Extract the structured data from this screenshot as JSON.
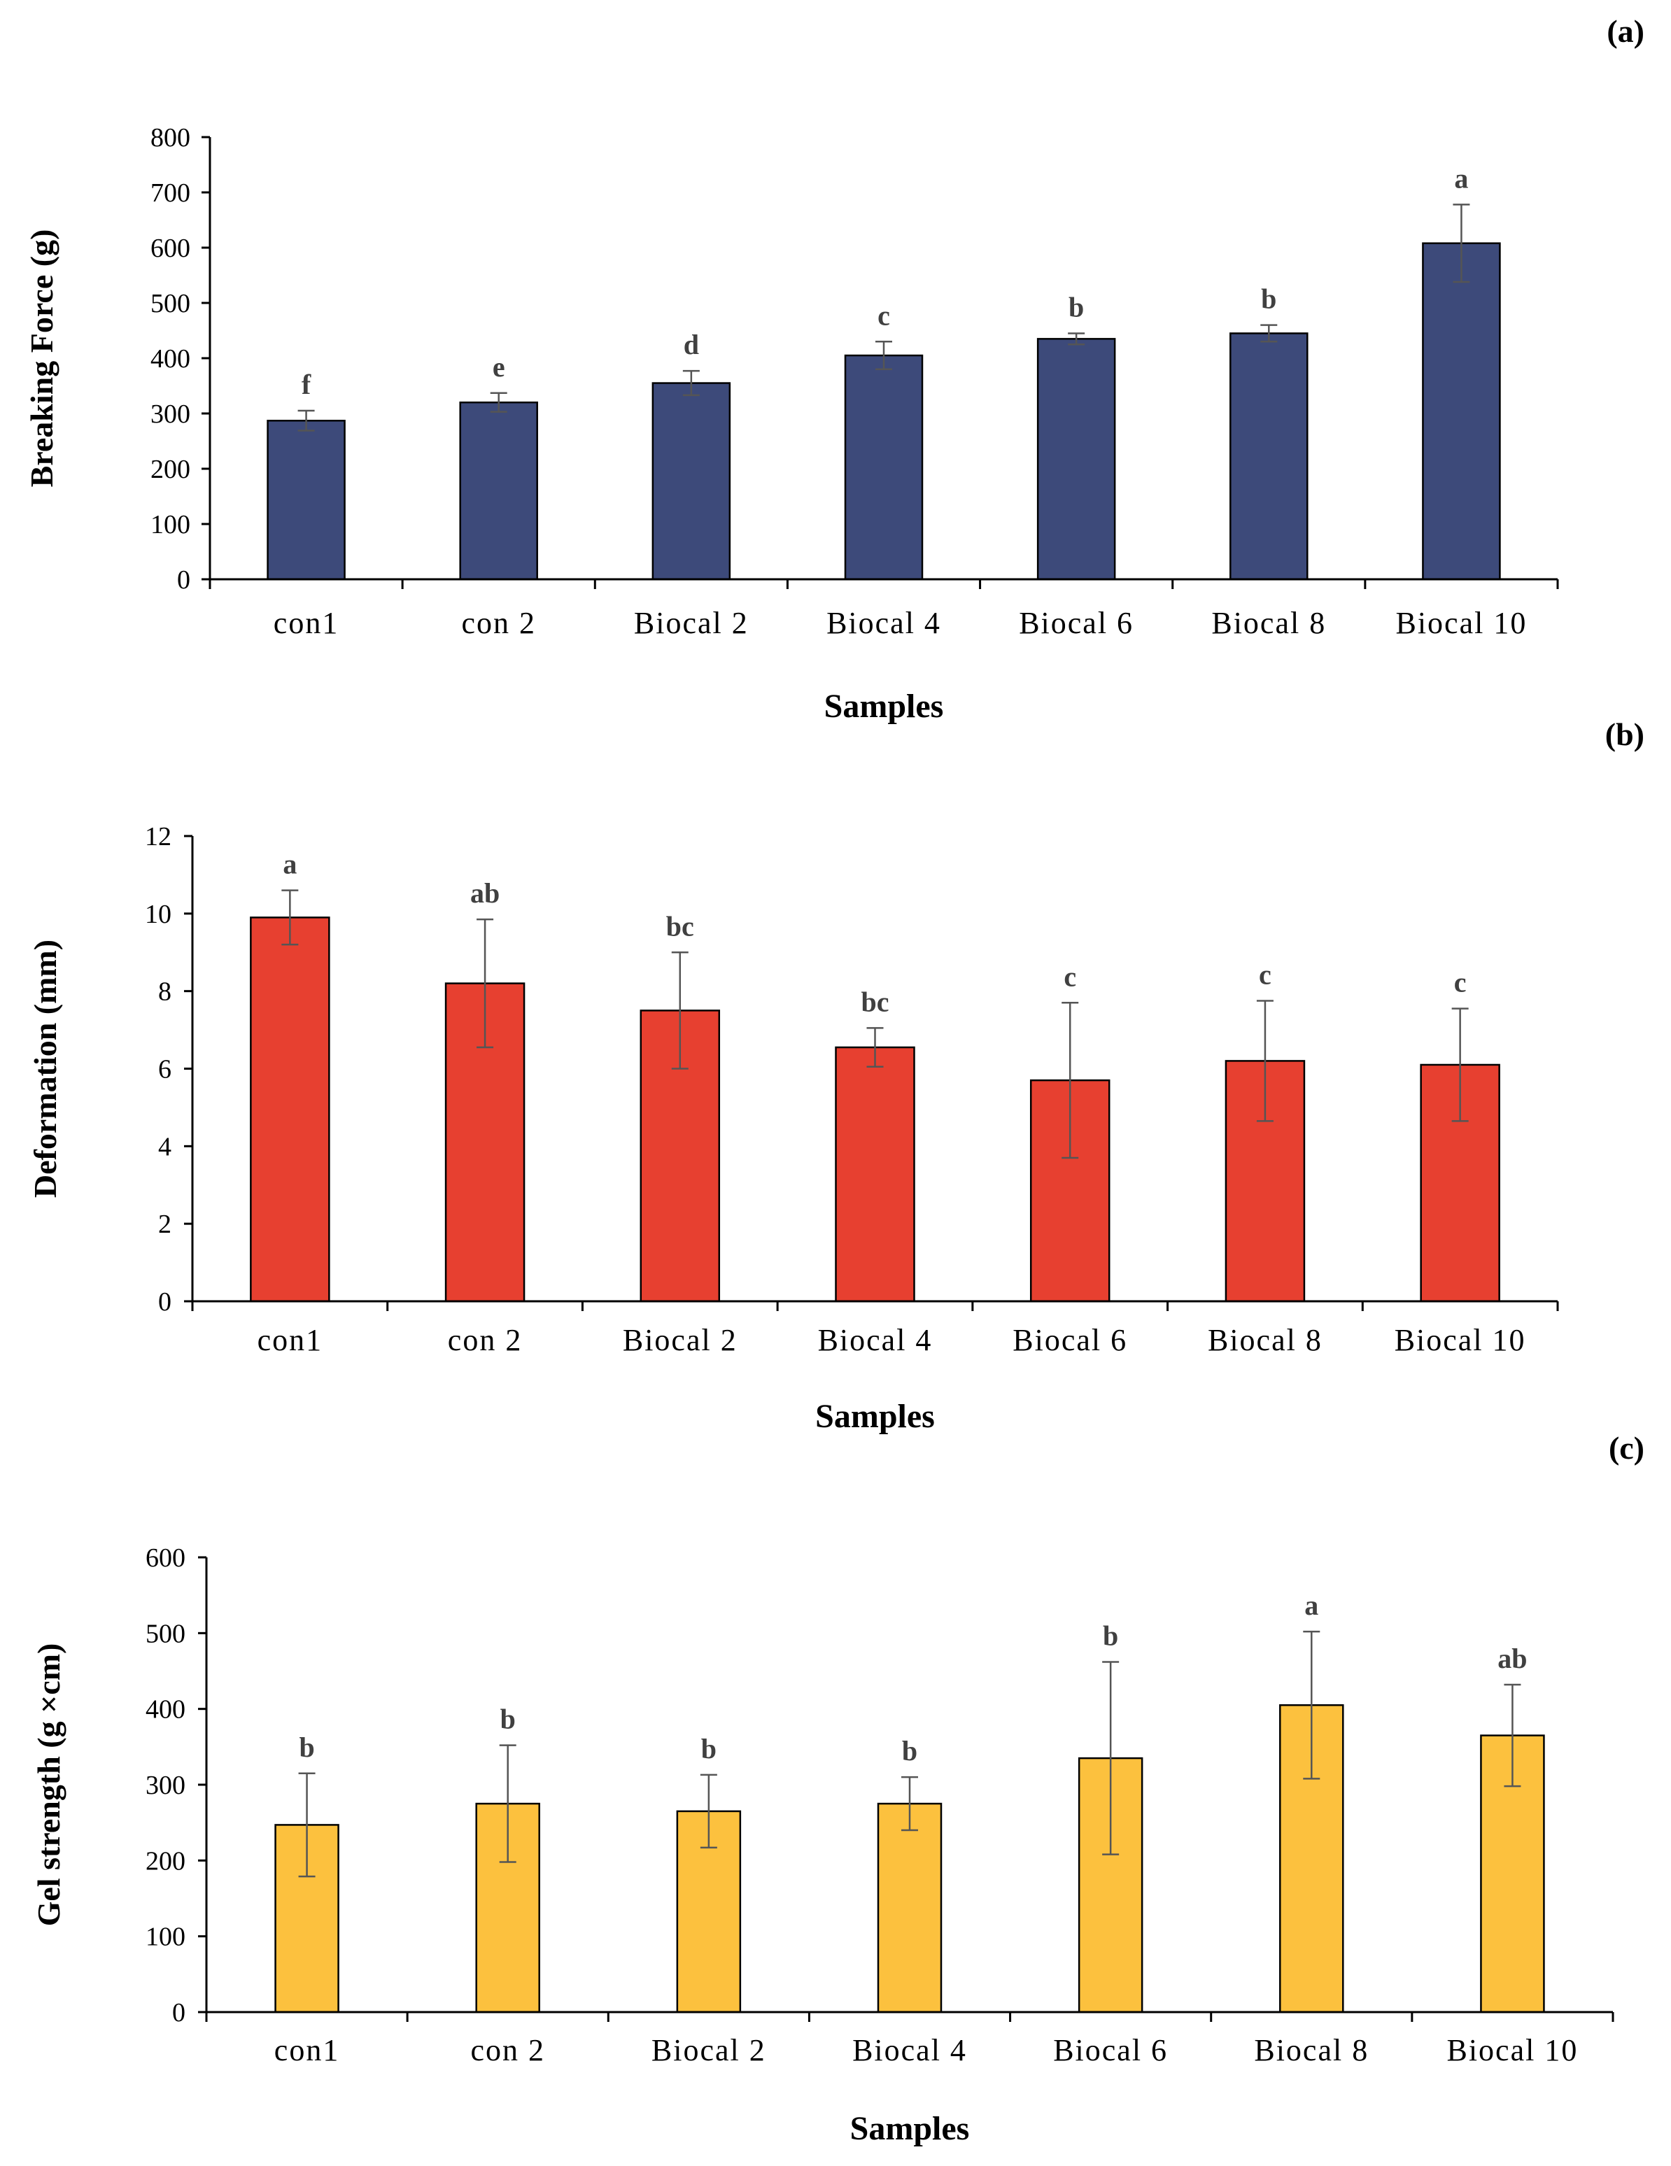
{
  "chart_data": [
    {
      "type": "bar",
      "panel_label": "(a)",
      "ylabel": "Breaking Force (g)",
      "xlabel": "Samples",
      "ylim": [
        0,
        800
      ],
      "yticks": [
        0,
        100,
        200,
        300,
        400,
        500,
        600,
        700,
        800
      ],
      "categories": [
        "con1",
        "con 2",
        "Biocal 2",
        "Biocal 4",
        "Biocal 6",
        "Biocal 8",
        "Biocal 10"
      ],
      "values": [
        287,
        320,
        355,
        405,
        435,
        445,
        608
      ],
      "errors": [
        18,
        17,
        22,
        25,
        10,
        15,
        70
      ],
      "significance": [
        "f",
        "e",
        "d",
        "c",
        "b",
        "b",
        "a"
      ],
      "bar_color": "#3d4a7a"
    },
    {
      "type": "bar",
      "panel_label": "(b)",
      "ylabel": "Deformation (mm)",
      "xlabel": "Samples",
      "ylim": [
        0,
        12
      ],
      "yticks": [
        0,
        2,
        4,
        6,
        8,
        10,
        12
      ],
      "categories": [
        "con1",
        "con 2",
        "Biocal 2",
        "Biocal 4",
        "Biocal 6",
        "Biocal 8",
        "Biocal 10"
      ],
      "values": [
        9.9,
        8.2,
        7.5,
        6.55,
        5.7,
        6.2,
        6.1
      ],
      "errors": [
        0.7,
        1.65,
        1.5,
        0.5,
        2.0,
        1.55,
        1.45
      ],
      "significance": [
        "a",
        "ab",
        "bc",
        "bc",
        "c",
        "c",
        "c"
      ],
      "bar_color": "#e74030"
    },
    {
      "type": "bar",
      "panel_label": "(c)",
      "ylabel": "Gel strength (g ×cm)",
      "xlabel": "Samples",
      "ylim": [
        0,
        600
      ],
      "yticks": [
        0,
        100,
        200,
        300,
        400,
        500,
        600
      ],
      "categories": [
        "con1",
        "con 2",
        "Biocal 2",
        "Biocal 4",
        "Biocal 6",
        "Biocal 8",
        "Biocal 10"
      ],
      "values": [
        247,
        275,
        265,
        275,
        335,
        405,
        365
      ],
      "errors": [
        68,
        77,
        48,
        35,
        127,
        97,
        67
      ],
      "significance": [
        "b",
        "b",
        "b",
        "b",
        "b",
        "a",
        "ab"
      ],
      "bar_color": "#fcc13e"
    }
  ]
}
